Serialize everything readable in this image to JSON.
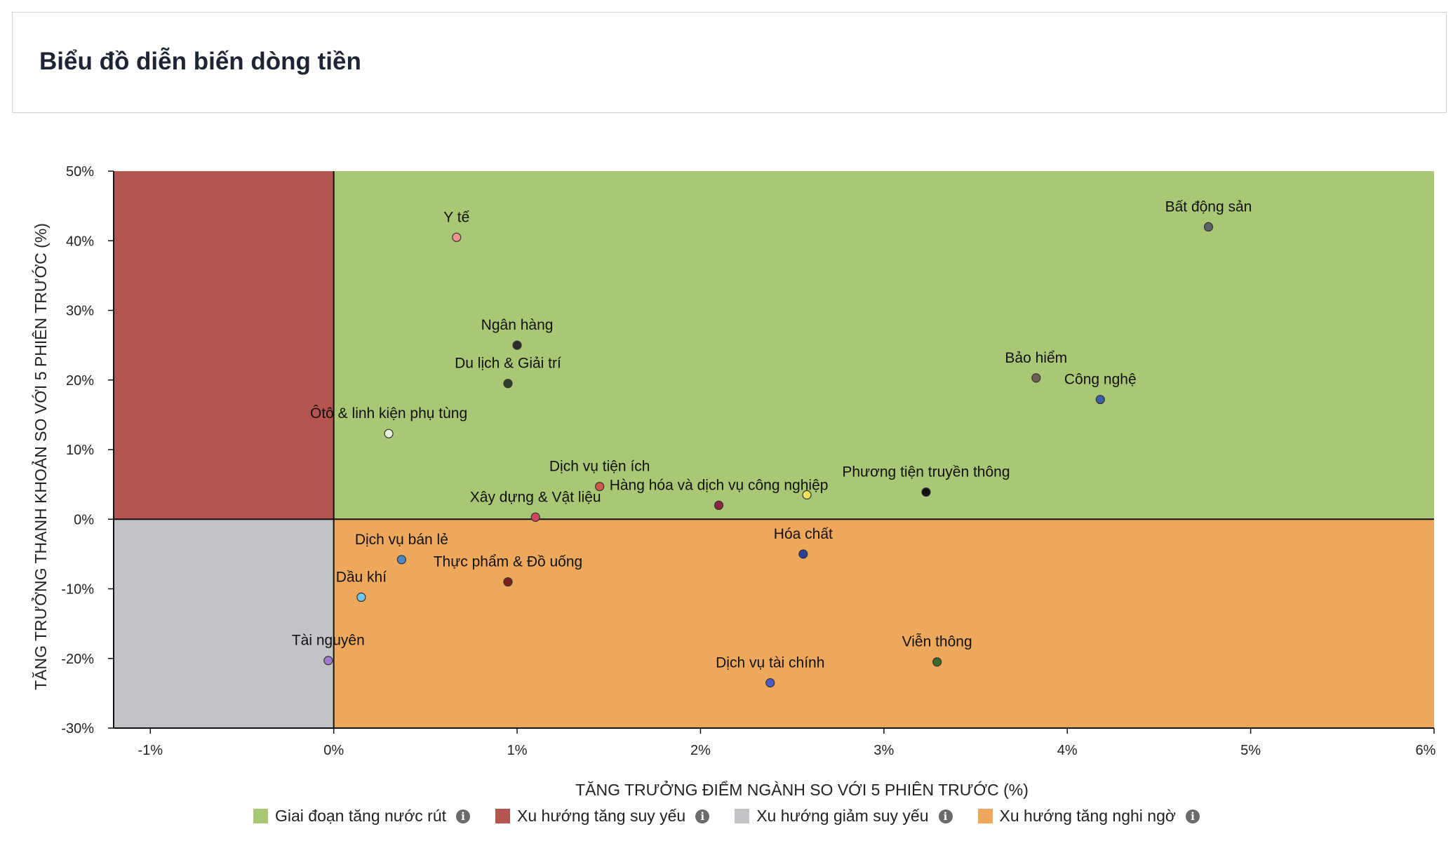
{
  "page": {
    "title": "Biểu đồ diễn biến dòng tiền"
  },
  "chart_data": {
    "type": "scatter",
    "xlabel": "TĂNG TRƯỞNG ĐIỂM NGÀNH SO VỚI 5 PHIÊN TRƯỚC (%)",
    "ylabel": "TĂNG TRƯỞNG THANH KHOẢN SO VỚI 5 PHIÊN TRƯỚC (%)",
    "xlim": [
      -1.2,
      6
    ],
    "ylim": [
      -30,
      50
    ],
    "xticks": [
      -1,
      0,
      1,
      2,
      3,
      4,
      5,
      6
    ],
    "yticks": [
      -30,
      -20,
      -10,
      0,
      10,
      20,
      30,
      40,
      50
    ],
    "xtick_labels": [
      "-1%",
      "0%",
      "1%",
      "2%",
      "3%",
      "4%",
      "5%",
      "6%"
    ],
    "ytick_labels": [
      "-30%",
      "-20%",
      "-10%",
      "0%",
      "10%",
      "20%",
      "30%",
      "40%",
      "50%"
    ],
    "grid": false,
    "legend_position": "bottom",
    "quadrants": [
      {
        "name": "Giai đoạn tăng nước rút",
        "color": "#a9c775",
        "x_range": [
          0,
          6
        ],
        "y_range": [
          0,
          50
        ]
      },
      {
        "name": "Xu hướng tăng suy yếu",
        "color": "#b5554f",
        "x_range": [
          -1.2,
          0
        ],
        "y_range": [
          0,
          50
        ]
      },
      {
        "name": "Xu hướng giảm suy yếu",
        "color": "#c2c3c7",
        "x_range": [
          -1.2,
          0
        ],
        "y_range": [
          -30,
          0
        ]
      },
      {
        "name": "Xu hướng tăng nghi ngờ",
        "color": "#eea85c",
        "x_range": [
          0,
          6
        ],
        "y_range": [
          -30,
          0
        ]
      }
    ],
    "points": [
      {
        "label": "Y tế",
        "x": 0.67,
        "y": 40.5,
        "color": "#f0948e"
      },
      {
        "label": "Bất động sản",
        "x": 4.77,
        "y": 42.0,
        "color": "#5e6167"
      },
      {
        "label": "Ngân hàng",
        "x": 1.0,
        "y": 25.0,
        "color": "#2c2c2c"
      },
      {
        "label": "Du lịch & Giải trí",
        "x": 0.95,
        "y": 19.5,
        "color": "#2e3d2a"
      },
      {
        "label": "Bảo hiểm",
        "x": 3.83,
        "y": 20.3,
        "color": "#6b6150"
      },
      {
        "label": "Công nghệ",
        "x": 4.18,
        "y": 17.2,
        "color": "#3b5ea8"
      },
      {
        "label": "Ôtô & linh kiện phụ tùng",
        "x": 0.3,
        "y": 12.3,
        "color": "#e9f2df"
      },
      {
        "label": "Dịch vụ tiện ích",
        "x": 1.45,
        "y": 4.7,
        "color": "#d2574b"
      },
      {
        "label": "Hàng hóa và dịch vụ công nghiệp",
        "x": 2.1,
        "y": 2.0,
        "color": "#8e2440"
      },
      {
        "label": "Phương tiện truyền thông",
        "x": 3.23,
        "y": 3.9,
        "color": "#111111"
      },
      {
        "label": "Xây dựng & Vật liệu",
        "x": 1.1,
        "y": 0.3,
        "color": "#d34463"
      },
      {
        "label": "",
        "x": 2.58,
        "y": 3.5,
        "color": "#f0e35a"
      },
      {
        "label": "Hóa chất",
        "x": 2.56,
        "y": -5.0,
        "color": "#2b3f96"
      },
      {
        "label": "Dịch vụ bán lẻ",
        "x": 0.37,
        "y": -5.8,
        "color": "#4f86c4"
      },
      {
        "label": "Thực phẩm & Đồ uống",
        "x": 0.95,
        "y": -9.0,
        "color": "#7a1e1e"
      },
      {
        "label": "Dầu khí",
        "x": 0.15,
        "y": -11.2,
        "color": "#6fc5ea"
      },
      {
        "label": "Tài nguyên",
        "x": -0.03,
        "y": -20.3,
        "color": "#a57bd0"
      },
      {
        "label": "Viễn thông",
        "x": 3.29,
        "y": -20.5,
        "color": "#3a6a2c"
      },
      {
        "label": "Dịch vụ tài chính",
        "x": 2.38,
        "y": -23.5,
        "color": "#4c5cc4"
      }
    ]
  }
}
